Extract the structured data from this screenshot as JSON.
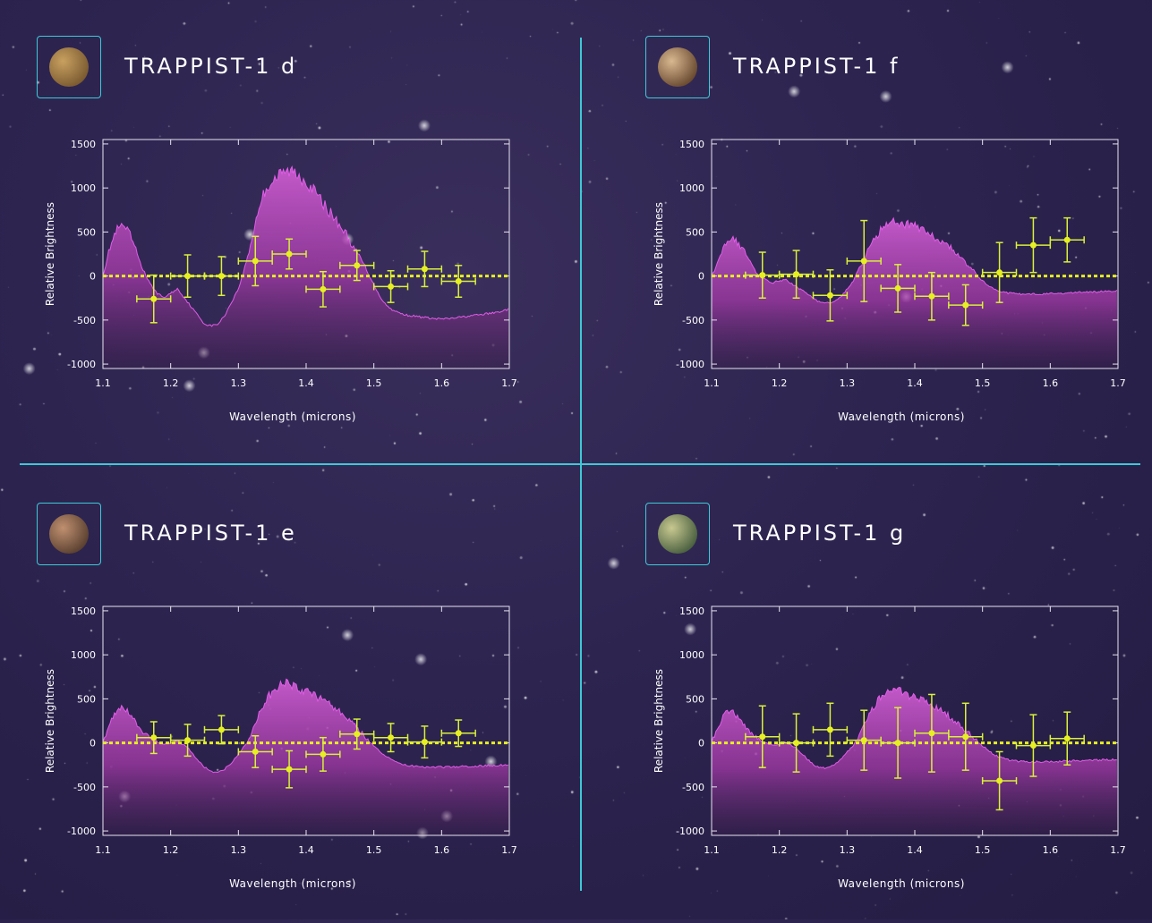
{
  "panels": [
    {
      "title": "TRAPPIST-1 d",
      "planet_colors": [
        "#c8a060",
        "#7a5a30"
      ],
      "chart_data": {
        "type": "line",
        "xlabel": "Wavelength (microns)",
        "ylabel": "Relative Brightness",
        "xlim": [
          1.1,
          1.7
        ],
        "ylim": [
          -1050,
          1550
        ],
        "xticks": [
          "1.1",
          "1.2",
          "1.3",
          "1.4",
          "1.5",
          "1.6",
          "1.7"
        ],
        "yticks": [
          "1500",
          "1000",
          "500",
          "0",
          "-500",
          "-1000"
        ],
        "model": {
          "x": [
            1.1,
            1.11,
            1.12,
            1.13,
            1.14,
            1.15,
            1.16,
            1.17,
            1.18,
            1.19,
            1.2,
            1.21,
            1.22,
            1.23,
            1.24,
            1.25,
            1.26,
            1.27,
            1.28,
            1.29,
            1.3,
            1.31,
            1.32,
            1.33,
            1.34,
            1.35,
            1.36,
            1.37,
            1.38,
            1.39,
            1.4,
            1.41,
            1.42,
            1.43,
            1.44,
            1.45,
            1.46,
            1.47,
            1.48,
            1.49,
            1.5,
            1.51,
            1.52,
            1.53,
            1.54,
            1.55,
            1.56,
            1.57,
            1.58,
            1.59,
            1.6,
            1.61,
            1.62,
            1.63,
            1.64,
            1.65,
            1.66,
            1.67,
            1.68,
            1.69,
            1.7
          ],
          "y": [
            0,
            300,
            500,
            550,
            450,
            250,
            50,
            -100,
            -200,
            -250,
            -200,
            -150,
            -250,
            -350,
            -450,
            -550,
            -570,
            -550,
            -450,
            -300,
            -150,
            100,
            400,
            750,
            950,
            1050,
            1100,
            1150,
            1150,
            1100,
            1050,
            950,
            850,
            750,
            650,
            550,
            450,
            300,
            200,
            50,
            -100,
            -250,
            -350,
            -400,
            -430,
            -450,
            -460,
            -470,
            -480,
            -490,
            -490,
            -490,
            -480,
            -470,
            -460,
            -450,
            -440,
            -430,
            -420,
            -400,
            -380
          ]
        },
        "points": [
          {
            "x": 1.175,
            "y": -260,
            "xerr": 0.025,
            "yerr": 270
          },
          {
            "x": 1.225,
            "y": 0,
            "xerr": 0.025,
            "yerr": 240
          },
          {
            "x": 1.275,
            "y": 0,
            "xerr": 0.025,
            "yerr": 220
          },
          {
            "x": 1.325,
            "y": 170,
            "xerr": 0.025,
            "yerr": 280
          },
          {
            "x": 1.375,
            "y": 250,
            "xerr": 0.025,
            "yerr": 170
          },
          {
            "x": 1.425,
            "y": -150,
            "xerr": 0.025,
            "yerr": 200
          },
          {
            "x": 1.475,
            "y": 120,
            "xerr": 0.025,
            "yerr": 170
          },
          {
            "x": 1.525,
            "y": -120,
            "xerr": 0.025,
            "yerr": 180
          },
          {
            "x": 1.575,
            "y": 80,
            "xerr": 0.025,
            "yerr": 200
          },
          {
            "x": 1.625,
            "y": -60,
            "xerr": 0.025,
            "yerr": 180
          }
        ]
      }
    },
    {
      "title": "TRAPPIST-1 f",
      "planet_colors": [
        "#d8b890",
        "#6a4a30"
      ],
      "chart_data": {
        "type": "line",
        "xlabel": "Wavelength (microns)",
        "ylabel": "Relative Brightness",
        "xlim": [
          1.1,
          1.7
        ],
        "ylim": [
          -1050,
          1550
        ],
        "xticks": [
          "1.1",
          "1.2",
          "1.3",
          "1.4",
          "1.5",
          "1.6",
          "1.7"
        ],
        "yticks": [
          "1500",
          "1000",
          "500",
          "0",
          "-500",
          "-1000"
        ],
        "model": {
          "x": [
            1.1,
            1.11,
            1.12,
            1.13,
            1.14,
            1.15,
            1.16,
            1.17,
            1.18,
            1.19,
            1.2,
            1.21,
            1.22,
            1.23,
            1.24,
            1.25,
            1.26,
            1.27,
            1.28,
            1.29,
            1.3,
            1.31,
            1.32,
            1.33,
            1.34,
            1.35,
            1.36,
            1.37,
            1.38,
            1.39,
            1.4,
            1.41,
            1.42,
            1.43,
            1.44,
            1.45,
            1.46,
            1.47,
            1.48,
            1.49,
            1.5,
            1.51,
            1.52,
            1.53,
            1.54,
            1.55,
            1.56,
            1.57,
            1.58,
            1.59,
            1.6,
            1.61,
            1.62,
            1.63,
            1.64,
            1.65,
            1.66,
            1.67,
            1.68,
            1.69,
            1.7
          ],
          "y": [
            0,
            150,
            350,
            400,
            350,
            250,
            100,
            0,
            -50,
            -80,
            -60,
            -50,
            -100,
            -150,
            -200,
            -260,
            -300,
            -310,
            -300,
            -250,
            -150,
            -50,
            100,
            280,
            400,
            500,
            580,
            600,
            580,
            560,
            540,
            500,
            460,
            420,
            380,
            320,
            260,
            180,
            100,
            20,
            -60,
            -120,
            -170,
            -190,
            -200,
            -205,
            -210,
            -210,
            -210,
            -210,
            -205,
            -200,
            -200,
            -195,
            -190,
            -190,
            -185,
            -185,
            -180,
            -175,
            -170
          ]
        },
        "points": [
          {
            "x": 1.175,
            "y": 10,
            "xerr": 0.025,
            "yerr": 260
          },
          {
            "x": 1.225,
            "y": 20,
            "xerr": 0.025,
            "yerr": 270
          },
          {
            "x": 1.275,
            "y": -220,
            "xerr": 0.025,
            "yerr": 290
          },
          {
            "x": 1.325,
            "y": 170,
            "xerr": 0.025,
            "yerr": 460
          },
          {
            "x": 1.375,
            "y": -140,
            "xerr": 0.025,
            "yerr": 270
          },
          {
            "x": 1.425,
            "y": -230,
            "xerr": 0.025,
            "yerr": 270
          },
          {
            "x": 1.475,
            "y": -330,
            "xerr": 0.025,
            "yerr": 230
          },
          {
            "x": 1.525,
            "y": 40,
            "xerr": 0.025,
            "yerr": 340
          },
          {
            "x": 1.575,
            "y": 350,
            "xerr": 0.025,
            "yerr": 310
          },
          {
            "x": 1.625,
            "y": 410,
            "xerr": 0.025,
            "yerr": 250
          }
        ]
      }
    },
    {
      "title": "TRAPPIST-1 e",
      "planet_colors": [
        "#c09070",
        "#5a4030"
      ],
      "chart_data": {
        "type": "line",
        "xlabel": "Wavelength (microns)",
        "ylabel": "Relative Brightness",
        "xlim": [
          1.1,
          1.7
        ],
        "ylim": [
          -1050,
          1550
        ],
        "xticks": [
          "1.1",
          "1.2",
          "1.3",
          "1.4",
          "1.5",
          "1.6",
          "1.7"
        ],
        "yticks": [
          "1500",
          "1000",
          "500",
          "0",
          "-500",
          "-1000"
        ],
        "model": {
          "x": [
            1.1,
            1.11,
            1.12,
            1.13,
            1.14,
            1.15,
            1.16,
            1.17,
            1.18,
            1.19,
            1.2,
            1.21,
            1.22,
            1.23,
            1.24,
            1.25,
            1.26,
            1.27,
            1.28,
            1.29,
            1.3,
            1.31,
            1.32,
            1.33,
            1.34,
            1.35,
            1.36,
            1.37,
            1.38,
            1.39,
            1.4,
            1.41,
            1.42,
            1.43,
            1.44,
            1.45,
            1.46,
            1.47,
            1.48,
            1.49,
            1.5,
            1.51,
            1.52,
            1.53,
            1.54,
            1.55,
            1.56,
            1.57,
            1.58,
            1.59,
            1.6,
            1.61,
            1.62,
            1.63,
            1.64,
            1.65,
            1.66,
            1.67,
            1.68,
            1.69,
            1.7
          ],
          "y": [
            0,
            200,
            350,
            380,
            300,
            200,
            100,
            50,
            0,
            -30,
            0,
            20,
            -30,
            -100,
            -200,
            -280,
            -330,
            -330,
            -300,
            -230,
            -130,
            -30,
            100,
            300,
            450,
            560,
            620,
            650,
            620,
            590,
            560,
            520,
            480,
            440,
            400,
            340,
            270,
            200,
            120,
            40,
            -40,
            -110,
            -170,
            -210,
            -240,
            -260,
            -270,
            -275,
            -280,
            -280,
            -280,
            -278,
            -275,
            -272,
            -270,
            -268,
            -265,
            -262,
            -260,
            -258,
            -255
          ]
        },
        "points": [
          {
            "x": 1.175,
            "y": 60,
            "xerr": 0.025,
            "yerr": 180
          },
          {
            "x": 1.225,
            "y": 30,
            "xerr": 0.025,
            "yerr": 180
          },
          {
            "x": 1.275,
            "y": 150,
            "xerr": 0.025,
            "yerr": 160
          },
          {
            "x": 1.325,
            "y": -100,
            "xerr": 0.025,
            "yerr": 180
          },
          {
            "x": 1.375,
            "y": -300,
            "xerr": 0.025,
            "yerr": 210
          },
          {
            "x": 1.425,
            "y": -130,
            "xerr": 0.025,
            "yerr": 190
          },
          {
            "x": 1.475,
            "y": 100,
            "xerr": 0.025,
            "yerr": 170
          },
          {
            "x": 1.525,
            "y": 60,
            "xerr": 0.025,
            "yerr": 160
          },
          {
            "x": 1.575,
            "y": 10,
            "xerr": 0.025,
            "yerr": 180
          },
          {
            "x": 1.625,
            "y": 110,
            "xerr": 0.025,
            "yerr": 150
          }
        ]
      }
    },
    {
      "title": "TRAPPIST-1 g",
      "planet_colors": [
        "#c8c890",
        "#4a6040"
      ],
      "chart_data": {
        "type": "line",
        "xlabel": "Wavelength (microns)",
        "ylabel": "Relative Brightness",
        "xlim": [
          1.1,
          1.7
        ],
        "ylim": [
          -1050,
          1550
        ],
        "xticks": [
          "1.1",
          "1.2",
          "1.3",
          "1.4",
          "1.5",
          "1.6",
          "1.7"
        ],
        "yticks": [
          "1500",
          "1000",
          "500",
          "0",
          "-500",
          "-1000"
        ],
        "model": {
          "x": [
            1.1,
            1.11,
            1.12,
            1.13,
            1.14,
            1.15,
            1.16,
            1.17,
            1.18,
            1.19,
            1.2,
            1.21,
            1.22,
            1.23,
            1.24,
            1.25,
            1.26,
            1.27,
            1.28,
            1.29,
            1.3,
            1.31,
            1.32,
            1.33,
            1.34,
            1.35,
            1.36,
            1.37,
            1.38,
            1.39,
            1.4,
            1.41,
            1.42,
            1.43,
            1.44,
            1.45,
            1.46,
            1.47,
            1.48,
            1.49,
            1.5,
            1.51,
            1.52,
            1.53,
            1.54,
            1.55,
            1.56,
            1.57,
            1.58,
            1.59,
            1.6,
            1.61,
            1.62,
            1.63,
            1.64,
            1.65,
            1.66,
            1.67,
            1.68,
            1.69,
            1.7
          ],
          "y": [
            0,
            180,
            330,
            350,
            280,
            180,
            90,
            40,
            0,
            -30,
            -10,
            0,
            -40,
            -100,
            -180,
            -250,
            -290,
            -290,
            -260,
            -200,
            -110,
            -20,
            100,
            270,
            400,
            500,
            560,
            580,
            560,
            530,
            500,
            460,
            420,
            380,
            340,
            290,
            230,
            170,
            100,
            30,
            -40,
            -100,
            -150,
            -180,
            -200,
            -210,
            -215,
            -220,
            -220,
            -220,
            -218,
            -215,
            -212,
            -210,
            -208,
            -205,
            -203,
            -200,
            -198,
            -196,
            -194
          ]
        },
        "points": [
          {
            "x": 1.175,
            "y": 70,
            "xerr": 0.025,
            "yerr": 350
          },
          {
            "x": 1.225,
            "y": 0,
            "xerr": 0.025,
            "yerr": 330
          },
          {
            "x": 1.275,
            "y": 150,
            "xerr": 0.025,
            "yerr": 300
          },
          {
            "x": 1.325,
            "y": 30,
            "xerr": 0.025,
            "yerr": 340
          },
          {
            "x": 1.375,
            "y": 0,
            "xerr": 0.025,
            "yerr": 400
          },
          {
            "x": 1.425,
            "y": 110,
            "xerr": 0.025,
            "yerr": 440
          },
          {
            "x": 1.475,
            "y": 70,
            "xerr": 0.025,
            "yerr": 380
          },
          {
            "x": 1.525,
            "y": -430,
            "xerr": 0.025,
            "yerr": 330
          },
          {
            "x": 1.575,
            "y": -30,
            "xerr": 0.025,
            "yerr": 350
          },
          {
            "x": 1.625,
            "y": 50,
            "xerr": 0.025,
            "yerr": 300
          }
        ]
      }
    }
  ]
}
